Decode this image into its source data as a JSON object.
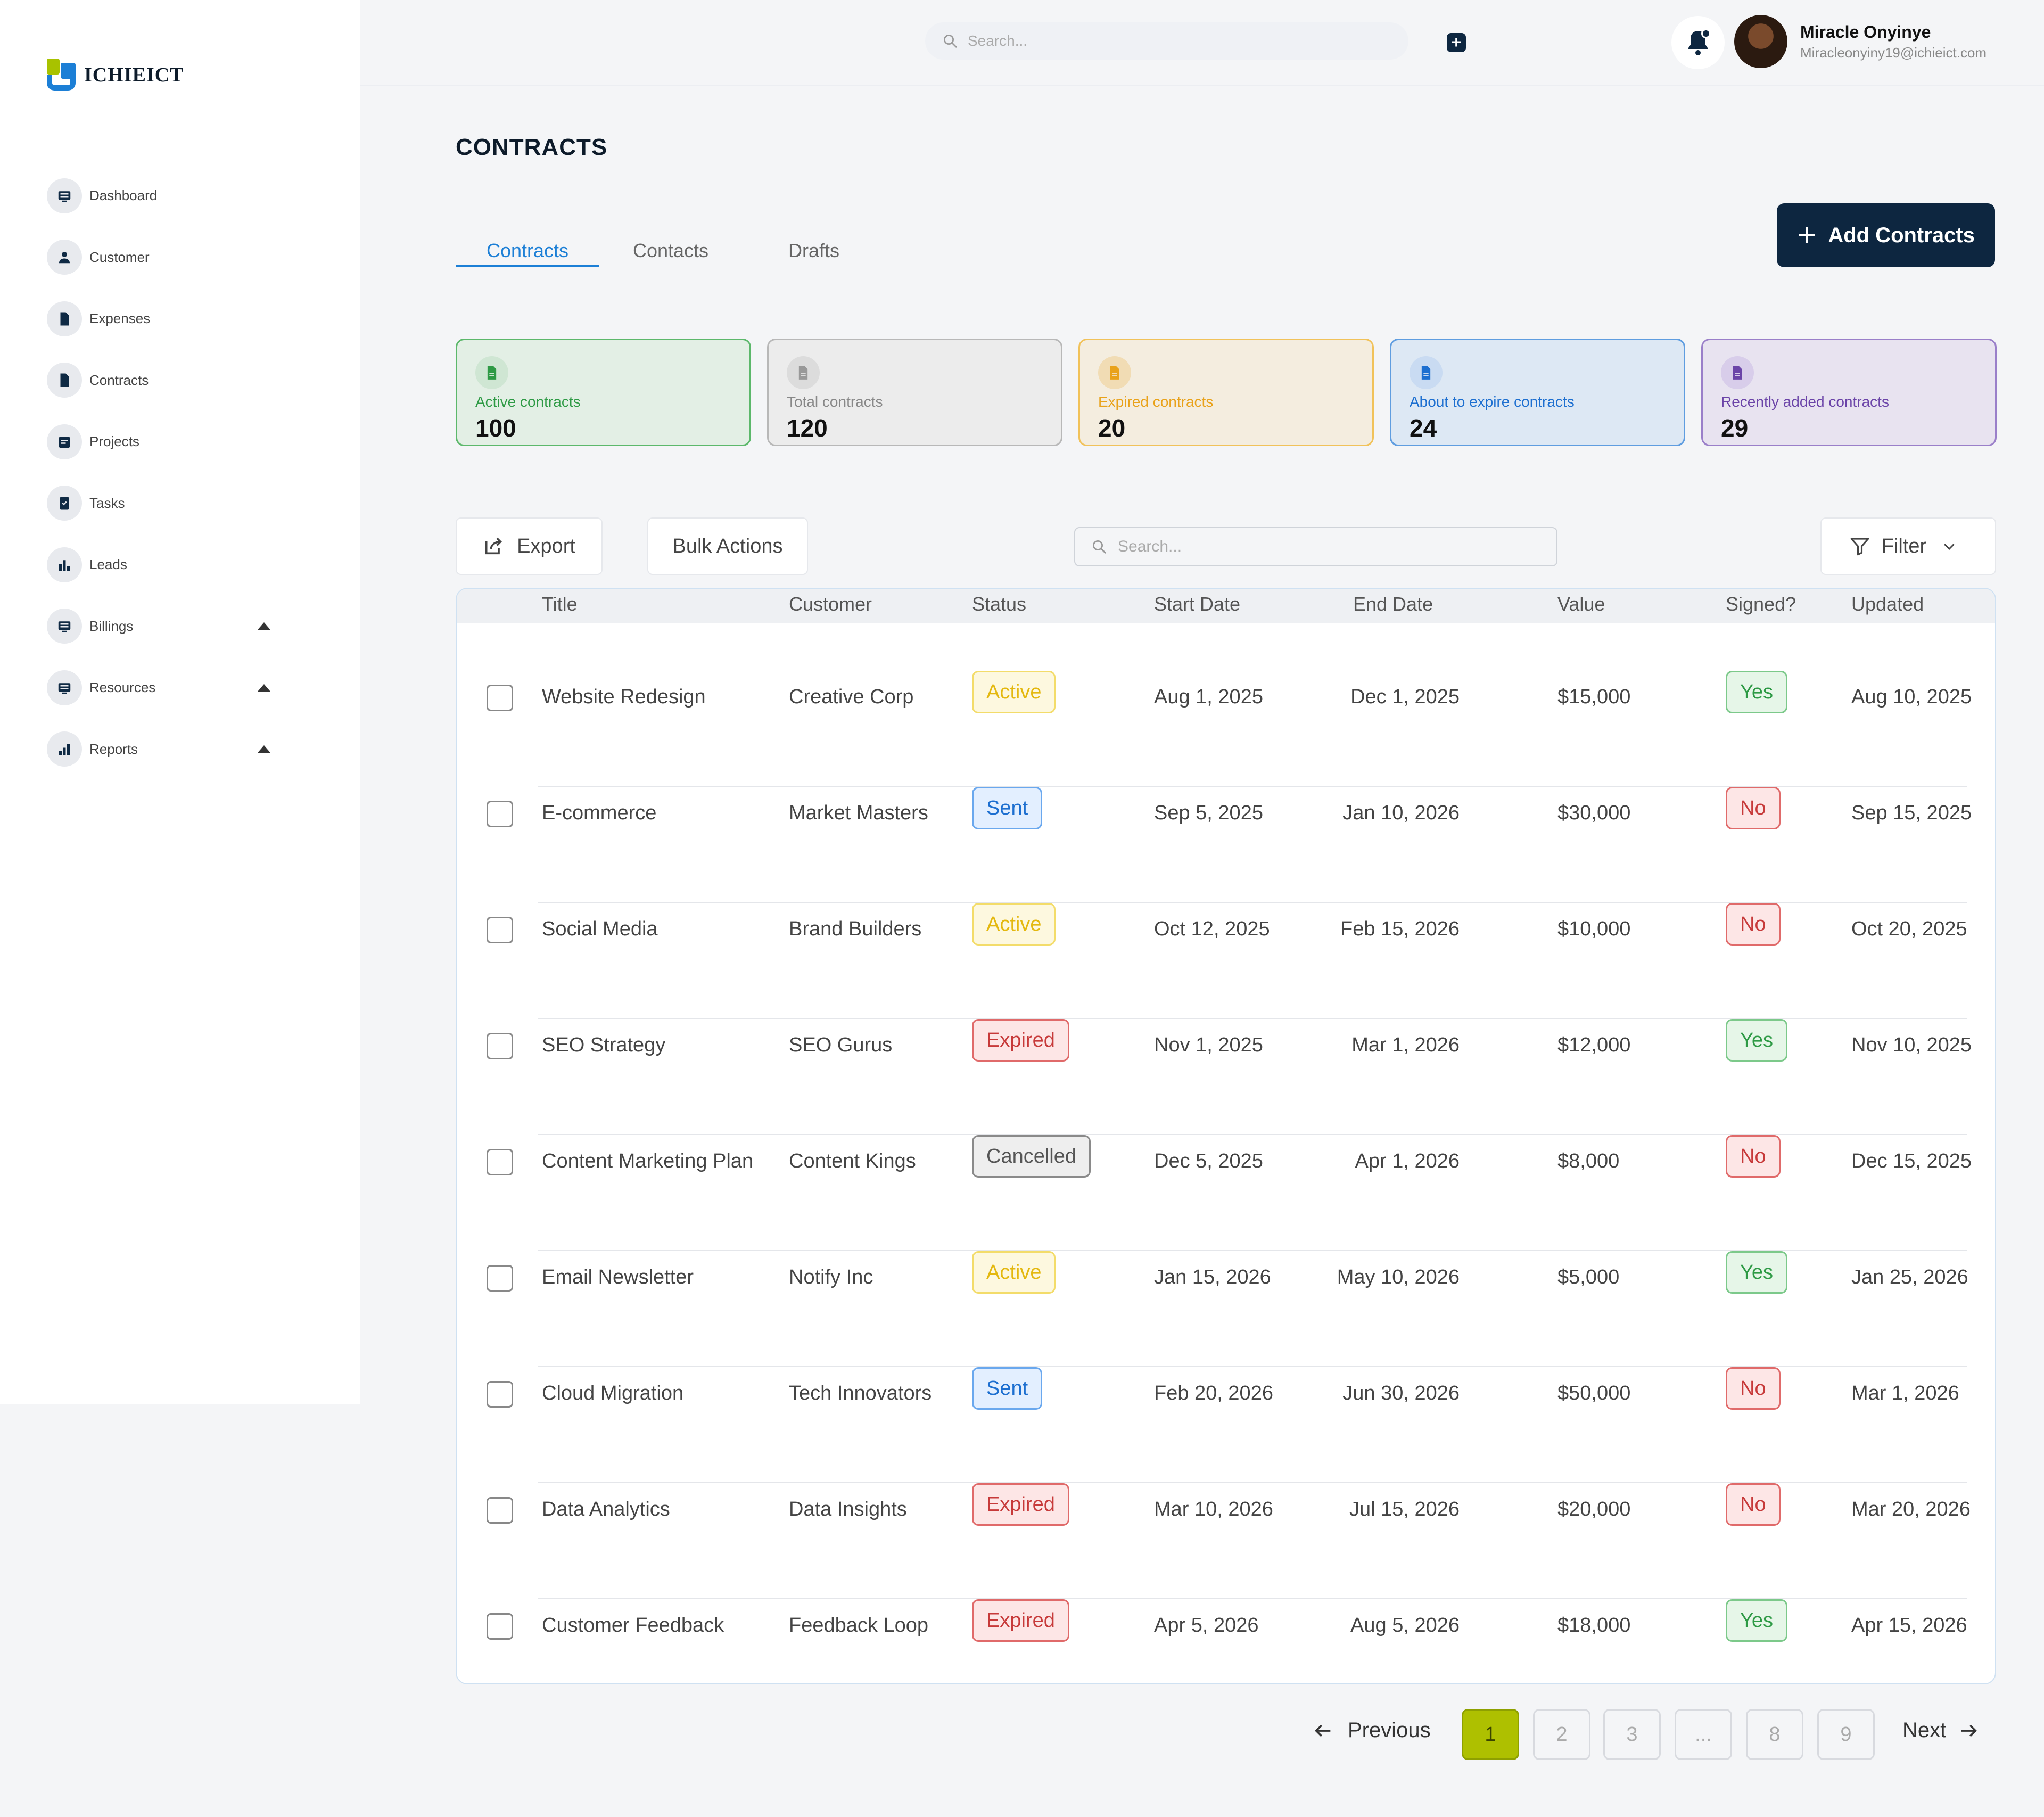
{
  "brand": {
    "name": "ICHIEICT"
  },
  "sidebar": {
    "items": [
      {
        "label": "Dashboard",
        "icon": "dashboard-icon",
        "caret": false
      },
      {
        "label": "Customer",
        "icon": "user-icon",
        "caret": false
      },
      {
        "label": "Expenses",
        "icon": "document-icon",
        "caret": false
      },
      {
        "label": "Contracts",
        "icon": "document-icon",
        "caret": false
      },
      {
        "label": "Projects",
        "icon": "projects-icon",
        "caret": false
      },
      {
        "label": "Tasks",
        "icon": "clipboard-icon",
        "caret": false
      },
      {
        "label": "Leads",
        "icon": "bar-chart-icon",
        "caret": false
      },
      {
        "label": "Billings",
        "icon": "billing-icon",
        "caret": true
      },
      {
        "label": "Resources",
        "icon": "resources-icon",
        "caret": true
      },
      {
        "label": "Reports",
        "icon": "reports-icon",
        "caret": true
      }
    ]
  },
  "header": {
    "search_placeholder": "Search...",
    "user": {
      "name": "Miracle Onyinye",
      "email": "Miracleonyiny19@ichieict.com"
    }
  },
  "page": {
    "title": "CONTRACTS",
    "tabs": [
      "Contracts",
      "Contacts",
      "Drafts"
    ],
    "active_tab": "Contracts",
    "add_button": "Add Contracts"
  },
  "stats": [
    {
      "label": "Active contracts",
      "value": "100",
      "bg": "#e3efe5",
      "border": "#5cb86b",
      "label_color": "#2e9a45",
      "icon_bg": "#cfe6d3",
      "icon_color": "#2e9a45"
    },
    {
      "label": "Total contracts",
      "value": "120",
      "bg": "#ececec",
      "border": "#b8b8b8",
      "label_color": "#888888",
      "icon_bg": "#dcdcdc",
      "icon_color": "#999999"
    },
    {
      "label": "Expired contracts",
      "value": "20",
      "bg": "#f4eddf",
      "border": "#f1c25a",
      "label_color": "#e9a21a",
      "icon_bg": "#f1dcb4",
      "icon_color": "#e9a21a"
    },
    {
      "label": "About to expire contracts",
      "value": "24",
      "bg": "#dde8f4",
      "border": "#5f9de0",
      "label_color": "#1d6fd0",
      "icon_bg": "#c9dbf2",
      "icon_color": "#1d6fd0"
    },
    {
      "label": "Recently added contracts",
      "value": "29",
      "bg": "#e8e3f0",
      "border": "#9a7fc9",
      "label_color": "#6b44a8",
      "icon_bg": "#d8cdea",
      "icon_color": "#6b44a8"
    }
  ],
  "toolbar": {
    "export_label": "Export",
    "bulk_label": "Bulk Actions",
    "search_placeholder": "Search...",
    "filter_label": "Filter"
  },
  "table": {
    "columns": [
      "Title",
      "Customer",
      "Status",
      "Start Date",
      "End Date",
      "Value",
      "Signed?",
      "Updated"
    ],
    "rows": [
      {
        "title": "Website Redesign",
        "customer": "Creative Corp",
        "status": "Active",
        "start": "Aug 1, 2025",
        "end": "Dec 1, 2025",
        "value": "$15,000",
        "signed": "Yes",
        "updated": "Aug 10, 2025"
      },
      {
        "title": "E-commerce",
        "customer": "Market Masters",
        "status": "Sent",
        "start": "Sep 5, 2025",
        "end": "Jan 10, 2026",
        "value": "$30,000",
        "signed": "No",
        "updated": "Sep 15, 2025"
      },
      {
        "title": "Social Media",
        "customer": "Brand Builders",
        "status": "Active",
        "start": "Oct 12, 2025",
        "end": "Feb 15, 2026",
        "value": "$10,000",
        "signed": "No",
        "updated": "Oct 20, 2025"
      },
      {
        "title": "SEO Strategy",
        "customer": "SEO Gurus",
        "status": "Expired",
        "start": "Nov 1, 2025",
        "end": "Mar 1, 2026",
        "value": "$12,000",
        "signed": "Yes",
        "updated": "Nov 10, 2025"
      },
      {
        "title": "Content Marketing Plan",
        "customer": "Content Kings",
        "status": "Cancelled",
        "start": "Dec 5, 2025",
        "end": "Apr 1, 2026",
        "value": "$8,000",
        "signed": "No",
        "updated": "Dec 15, 2025"
      },
      {
        "title": "Email Newsletter",
        "customer": "Notify Inc",
        "status": "Active",
        "start": "Jan 15, 2026",
        "end": "May 10, 2026",
        "value": "$5,000",
        "signed": "Yes",
        "updated": "Jan 25, 2026"
      },
      {
        "title": "Cloud Migration",
        "customer": "Tech Innovators",
        "status": "Sent",
        "start": "Feb 20, 2026",
        "end": "Jun 30, 2026",
        "value": "$50,000",
        "signed": "No",
        "updated": "Mar 1, 2026"
      },
      {
        "title": "Data Analytics",
        "customer": "Data Insights",
        "status": "Expired",
        "start": "Mar 10, 2026",
        "end": "Jul 15, 2026",
        "value": "$20,000",
        "signed": "No",
        "updated": "Mar 20, 2026"
      },
      {
        "title": "Customer Feedback",
        "customer": "Feedback Loop",
        "status": "Expired",
        "start": "Apr 5, 2026",
        "end": "Aug 5, 2026",
        "value": "$18,000",
        "signed": "Yes",
        "updated": "Apr 15, 2026"
      }
    ]
  },
  "pagination": {
    "prev_label": "Previous",
    "next_label": "Next",
    "pages": [
      "1",
      "2",
      "3",
      "...",
      "8",
      "9"
    ],
    "current": "1"
  }
}
